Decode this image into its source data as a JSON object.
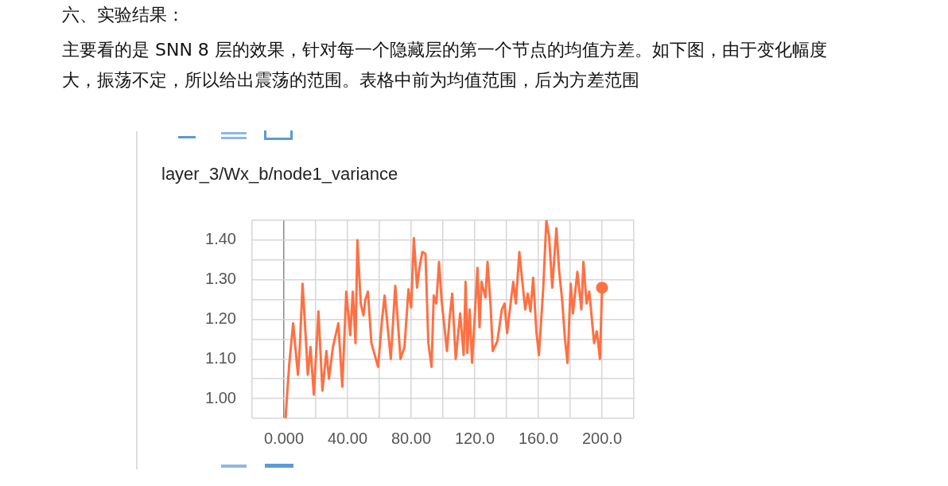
{
  "chart_data": {
    "type": "line",
    "title": "layer_3/Wx_b/node1_variance",
    "annotations": [
      "六、实验结果：",
      "主要看的是 SNN 8 层的效果，针对每一个隐藏层的第一个节点的均值方差。如下图，由于变化幅度大，振荡不定，所以给出震荡的范围。表格中前为均值范围，后为方差范围"
    ],
    "x": [
      1,
      3.3,
      5.8,
      8.8,
      10,
      11.7,
      13.8,
      15,
      16.7,
      18.8,
      21.7,
      24.2,
      26.7,
      28.3,
      30.8,
      34.2,
      36.7,
      39.2,
      41.7,
      43.3,
      45,
      46.2,
      48.3,
      50,
      51.2,
      52.8,
      55,
      59.2,
      61.7,
      63.3,
      67.2,
      70,
      73.3,
      75.8,
      78.3,
      80,
      81.7,
      83.7,
      85,
      87,
      89,
      90.8,
      92.8,
      94.2,
      95.8,
      97.5,
      99.2,
      102.5,
      104.2,
      105.8,
      108,
      110.8,
      113,
      114.2,
      115.3,
      116.7,
      118.3,
      121.7,
      123,
      124.2,
      126.7,
      128,
      130,
      131.3,
      134.2,
      137,
      138.7,
      140.3,
      142.5,
      144.2,
      145.8,
      148,
      151.7,
      153.3,
      155,
      156.7,
      158.7,
      160.3,
      163,
      165,
      166.7,
      168.7,
      171.3,
      173,
      175,
      176.7,
      178.3,
      180.3,
      181.7,
      184.5,
      187,
      188.3,
      190.3,
      192,
      195,
      196.7,
      198.7,
      200
    ],
    "series": [
      {
        "color": "#ff7043",
        "values": [
          0.95,
          1.085,
          1.19,
          1.06,
          1.13,
          1.29,
          1.15,
          1.06,
          1.13,
          1.01,
          1.22,
          1.02,
          1.12,
          1.05,
          1.13,
          1.19,
          1.03,
          1.27,
          1.16,
          1.27,
          1.14,
          1.4,
          1.24,
          1.21,
          1.25,
          1.27,
          1.14,
          1.08,
          1.2,
          1.26,
          1.1,
          1.285,
          1.1,
          1.13,
          1.276,
          1.23,
          1.405,
          1.28,
          1.325,
          1.37,
          1.365,
          1.14,
          1.08,
          1.26,
          1.24,
          1.345,
          1.245,
          1.12,
          1.205,
          1.265,
          1.1,
          1.215,
          1.11,
          1.295,
          1.115,
          1.225,
          1.09,
          1.33,
          1.18,
          1.295,
          1.255,
          1.345,
          1.23,
          1.12,
          1.145,
          1.225,
          1.24,
          1.165,
          1.24,
          1.295,
          1.24,
          1.37,
          1.225,
          1.265,
          1.22,
          1.305,
          1.17,
          1.11,
          1.276,
          1.45,
          1.41,
          1.28,
          1.43,
          1.325,
          1.245,
          1.15,
          1.09,
          1.29,
          1.215,
          1.32,
          1.225,
          1.345,
          1.24,
          1.27,
          1.14,
          1.17,
          1.1,
          1.28
        ]
      }
    ],
    "xlim": [
      -20,
      220
    ],
    "xticks": [
      {
        "value": -20,
        "label": null
      },
      {
        "value": 0,
        "label": "0.000"
      },
      {
        "value": 20,
        "label": null
      },
      {
        "value": 40,
        "label": "40.00"
      },
      {
        "value": 60,
        "label": null
      },
      {
        "value": 80,
        "label": "80.00"
      },
      {
        "value": 100,
        "label": null
      },
      {
        "value": 120,
        "label": "120.0"
      },
      {
        "value": 140,
        "label": null
      },
      {
        "value": 160,
        "label": "160.0"
      },
      {
        "value": 180,
        "label": null
      },
      {
        "value": 200,
        "label": "200.0"
      },
      {
        "value": 220,
        "label": null
      }
    ],
    "ylim": [
      0.95,
      1.45
    ],
    "yticks": [
      {
        "value": 0.95,
        "label": null
      },
      {
        "value": 1,
        "label": "1.00"
      },
      {
        "value": 1.05,
        "label": null
      },
      {
        "value": 1.1,
        "label": "1.10"
      },
      {
        "value": 1.15,
        "label": null
      },
      {
        "value": 1.2,
        "label": "1.20"
      },
      {
        "value": 1.25,
        "label": null
      },
      {
        "value": 1.3,
        "label": "1.30"
      },
      {
        "value": 1.35,
        "label": null
      },
      {
        "value": 1.4,
        "label": "1.40"
      },
      {
        "value": 1.45,
        "label": null
      }
    ],
    "grid": true,
    "legend": false
  }
}
